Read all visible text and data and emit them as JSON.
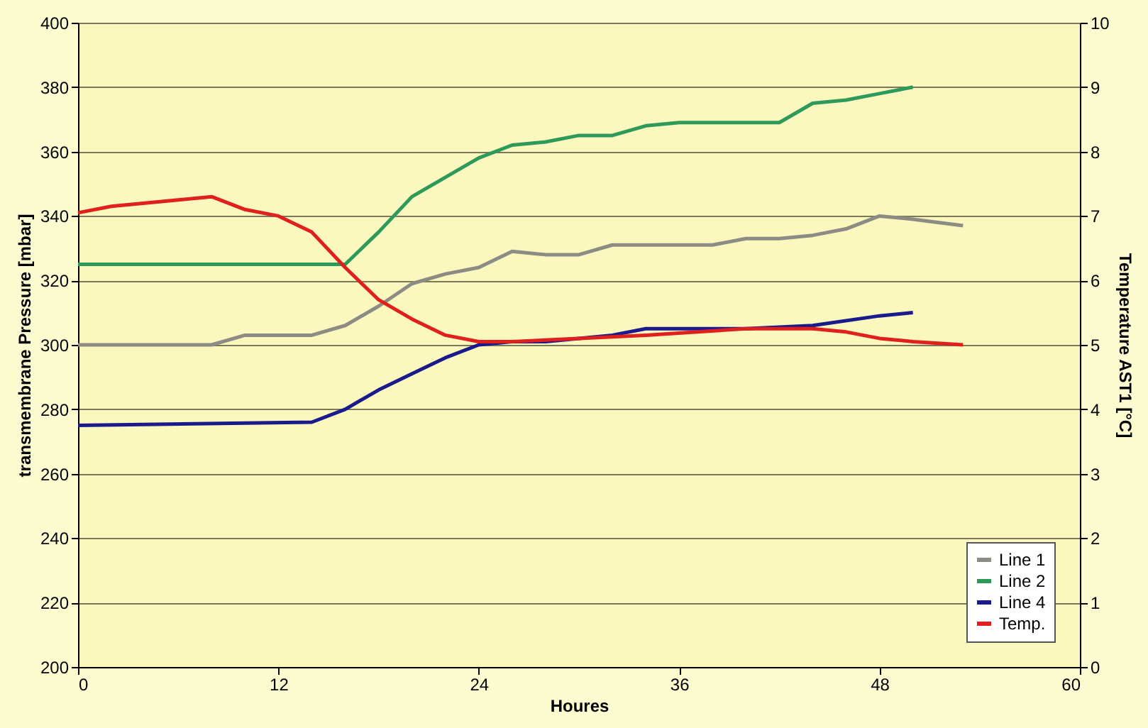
{
  "chart_data": {
    "type": "line",
    "xlabel": "Houres",
    "ylabel": "transmembrane Pressure [mbar]",
    "y2label": "Temperature AST1 [°C]",
    "xlim": [
      0,
      60
    ],
    "xticks": [
      0,
      12,
      24,
      36,
      48,
      60
    ],
    "ylim": [
      200,
      400
    ],
    "yticks": [
      200,
      220,
      240,
      260,
      280,
      300,
      320,
      340,
      360,
      380,
      400
    ],
    "y2lim": [
      0,
      10
    ],
    "y2ticks": [
      0,
      1,
      2,
      3,
      4,
      5,
      6,
      7,
      8,
      9,
      10
    ],
    "grid": "y",
    "legend": "bottom right",
    "line_style": "solid",
    "marker": "none",
    "series": [
      {
        "name": "Line 1",
        "color": "#8c8c84",
        "x": [
          0,
          6,
          8,
          10,
          12,
          14,
          16,
          18,
          20,
          22,
          24,
          26,
          28,
          30,
          32,
          34,
          36,
          38,
          40,
          42,
          44,
          46,
          48,
          50,
          53
        ],
        "values": [
          300,
          300,
          300,
          303,
          303,
          303,
          306,
          312,
          319,
          322,
          324,
          329,
          328,
          328,
          331,
          331,
          331,
          331,
          333,
          333,
          334,
          336,
          340,
          339,
          337
        ]
      },
      {
        "name": "Line 2",
        "color": "#2e9a5a",
        "x": [
          0,
          16,
          18,
          20,
          22,
          24,
          26,
          28,
          30,
          32,
          34,
          36,
          38,
          40,
          42,
          44,
          46,
          48,
          50
        ],
        "values": [
          325,
          325,
          335,
          346,
          352,
          358,
          362,
          363,
          365,
          365,
          368,
          369,
          369,
          369,
          369,
          375,
          376,
          378,
          380
        ]
      },
      {
        "name": "Line 4",
        "color": "#1a1a8c",
        "x": [
          0,
          14,
          16,
          18,
          20,
          22,
          24,
          26,
          28,
          30,
          32,
          34,
          36,
          40,
          44,
          48,
          50
        ],
        "values": [
          275,
          276,
          280,
          286,
          291,
          296,
          300,
          301,
          301,
          302,
          303,
          305,
          305,
          305,
          306,
          309,
          310
        ]
      },
      {
        "name": "Temp.",
        "color": "#e0201c",
        "axis": "y2",
        "x": [
          0,
          2,
          4,
          6,
          8,
          10,
          12,
          14,
          16,
          18,
          20,
          22,
          24,
          26,
          30,
          34,
          40,
          44,
          46,
          48,
          50,
          53
        ],
        "values": [
          7.05,
          7.15,
          7.2,
          7.25,
          7.3,
          7.1,
          7.0,
          6.75,
          6.2,
          5.7,
          5.4,
          5.15,
          5.05,
          5.05,
          5.1,
          5.15,
          5.25,
          5.25,
          5.2,
          5.1,
          5.05,
          5.0
        ]
      }
    ]
  }
}
